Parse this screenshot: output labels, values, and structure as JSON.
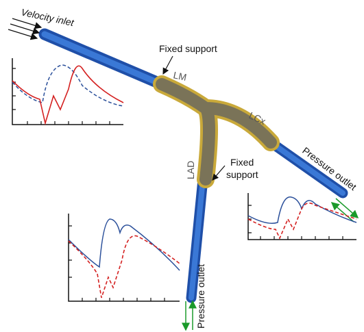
{
  "labels": {
    "velocity_inlet": "Velocity inlet",
    "fixed_support_top": "Fixed support",
    "fixed_support_right": [
      "Fixed",
      "support"
    ],
    "lm": "LM",
    "lcx": "LCx",
    "lad": "LAD",
    "pressure_outlet_right": "Pressure outlet",
    "pressure_outlet_bottom": "Pressure outlet"
  }
}
